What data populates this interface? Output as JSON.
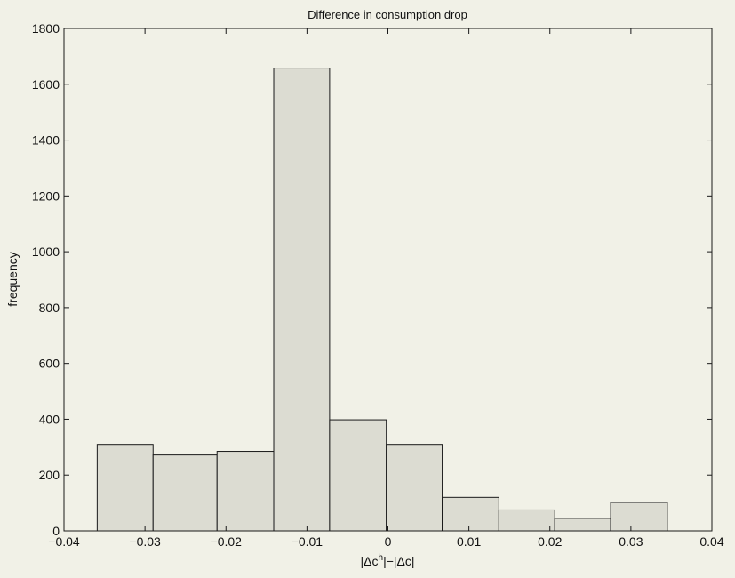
{
  "colors": {
    "background": "#f1f1e7",
    "plot_area": "#f1f1e7",
    "bar_fill": "#dcdcd2",
    "bar_stroke": "#1a1a1a",
    "axis": "#1a1a1a",
    "text": "#111111"
  },
  "chart_data": {
    "type": "bar",
    "title": "Difference in consumption drop",
    "xlabel": "",
    "ylabel": "frequency",
    "xlim": [
      -0.04,
      0.04
    ],
    "ylim": [
      0,
      1800
    ],
    "grid": false,
    "legend": "none",
    "x_ticks": [
      -0.04,
      -0.03,
      -0.02,
      -0.01,
      0,
      0.01,
      0.02,
      0.03,
      0.04
    ],
    "x_tick_labels": [
      "−0.04",
      "−0.03",
      "−0.02",
      "−0.01",
      "0",
      "0.01",
      "0.02",
      "0.03",
      "0.04"
    ],
    "y_ticks": [
      0,
      200,
      400,
      600,
      800,
      1000,
      1200,
      1400,
      1600,
      1800
    ],
    "y_tick_labels": [
      "0",
      "200",
      "400",
      "600",
      "800",
      "1000",
      "1200",
      "1400",
      "1600",
      "1800"
    ],
    "bins": [
      {
        "x0": -0.0359,
        "x1": -0.029,
        "value": 310
      },
      {
        "x0": -0.029,
        "x1": -0.0211,
        "value": 272
      },
      {
        "x0": -0.0211,
        "x1": -0.0141,
        "value": 285
      },
      {
        "x0": -0.0141,
        "x1": -0.0072,
        "value": 1658
      },
      {
        "x0": -0.0072,
        "x1": -0.0002,
        "value": 398
      },
      {
        "x0": -0.0002,
        "x1": 0.0067,
        "value": 310
      },
      {
        "x0": 0.0067,
        "x1": 0.0137,
        "value": 120
      },
      {
        "x0": 0.0137,
        "x1": 0.0206,
        "value": 75
      },
      {
        "x0": 0.0206,
        "x1": 0.0275,
        "value": 45
      },
      {
        "x0": 0.0275,
        "x1": 0.0345,
        "value": 102
      }
    ]
  }
}
